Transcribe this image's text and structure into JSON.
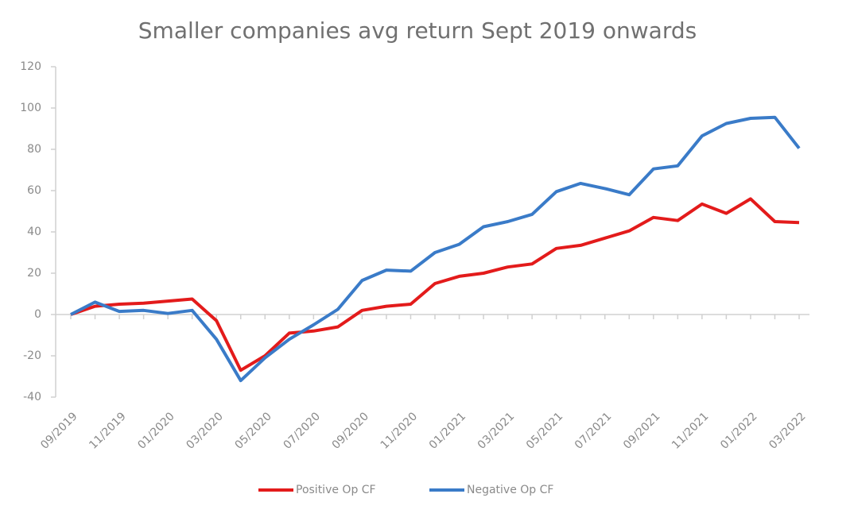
{
  "chart_data": {
    "type": "line",
    "title": "Smaller companies avg return Sept 2019 onwards",
    "categories": [
      "09/2019",
      null,
      "11/2019",
      null,
      "01/2020",
      null,
      "03/2020",
      null,
      "05/2020",
      null,
      "07/2020",
      null,
      "09/2020",
      null,
      "11/2020",
      null,
      "01/2021",
      null,
      "03/2021",
      null,
      "05/2021",
      null,
      "07/2021",
      null,
      "09/2021",
      null,
      "11/2021",
      null,
      "01/2022",
      null,
      "03/2022"
    ],
    "series": [
      {
        "name": "Positive Op CF",
        "color": "#e31b1b",
        "values": [
          0,
          4,
          5,
          5.5,
          6.5,
          7.5,
          -3,
          -27,
          -20,
          -9,
          -8,
          -6,
          2,
          4,
          5,
          15,
          18.5,
          20,
          23,
          24.5,
          32,
          33.5,
          37,
          40.5,
          47,
          45.5,
          53.5,
          49,
          56,
          45,
          44.5
        ]
      },
      {
        "name": "Negative Op CF",
        "color": "#3a7bc8",
        "values": [
          0,
          6,
          1.5,
          2,
          0.5,
          2,
          -12,
          -32,
          -21,
          -12,
          -5,
          2.5,
          16.5,
          21.5,
          21,
          30,
          34,
          42.5,
          45,
          48.5,
          59.5,
          63.5,
          61,
          58,
          70.5,
          72,
          86.5,
          92.5,
          95,
          95.5,
          80.5
        ]
      }
    ],
    "ylim": [
      -40,
      120
    ],
    "yticks": [
      -40,
      -20,
      0,
      20,
      40,
      60,
      80,
      100,
      120
    ],
    "legend": "bottom"
  }
}
